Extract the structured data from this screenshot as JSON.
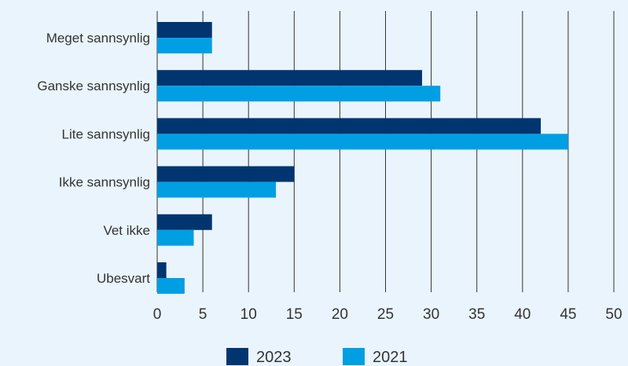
{
  "chart_data": {
    "type": "bar",
    "orientation": "horizontal",
    "title": "",
    "xlabel": "",
    "ylabel": "",
    "categories": [
      "Meget sannsynlig",
      "Ganske sannsynlig",
      "Lite sannsynlig",
      "Ikke sannsynlig",
      "Vet ikke",
      "Ubesvart"
    ],
    "series": [
      {
        "name": "2023",
        "color": "#003570",
        "values": [
          6,
          29,
          42,
          15,
          6,
          1
        ]
      },
      {
        "name": "2021",
        "color": "#009fe3",
        "values": [
          6,
          31,
          45,
          13,
          4,
          3
        ]
      }
    ],
    "xlim": [
      0,
      50
    ],
    "xticks": [
      0,
      5,
      10,
      15,
      20,
      25,
      30,
      35,
      40,
      45,
      50
    ],
    "grid": true,
    "gridline_color": "#333333",
    "legend_position": "bottom-center",
    "background_color": "#eaf4fc"
  }
}
